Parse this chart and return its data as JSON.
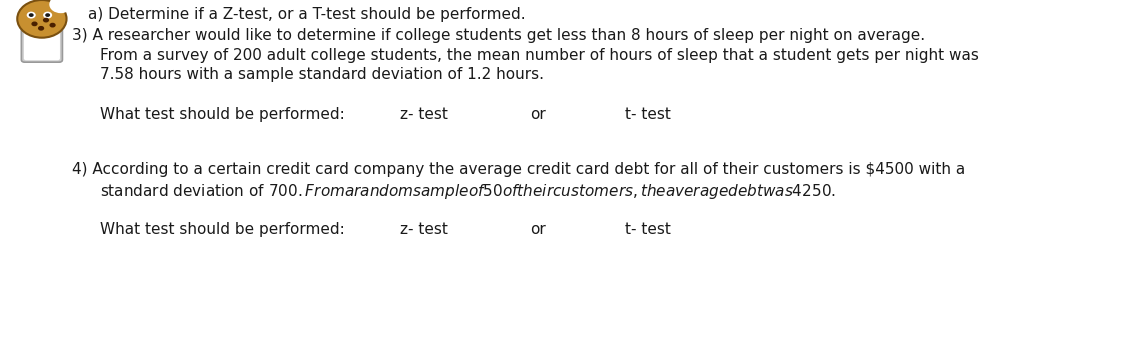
{
  "background_color": "#ffffff",
  "header_line": "a) Determine if a Z-test, or a T-test should be performed.",
  "q3_line1": "3) A researcher would like to determine if college students get less than 8 hours of sleep per night on average.",
  "q3_line2": "From a survey of 200 adult college students, the mean number of hours of sleep that a student gets per night was",
  "q3_line3": "7.58 hours with a sample standard deviation of 1.2 hours.",
  "q3_what": "What test should be performed:",
  "q3_ztest": "z- test",
  "q3_or": "or",
  "q3_ttest": "t- test",
  "q4_line1": "4) According to a certain credit card company the average credit card debt for all of their customers is $4500 with a",
  "q4_line2": "standard deviation of $700. From a random sample of 50 of their customers, the average debt was $4250.",
  "q4_what": "What test should be performed:",
  "q4_ztest": "z- test",
  "q4_or": "or",
  "q4_ttest": "t- test",
  "font_size": 11.0,
  "text_color": "#1a1a1a",
  "fig_width": 11.41,
  "fig_height": 3.49,
  "dpi": 100
}
